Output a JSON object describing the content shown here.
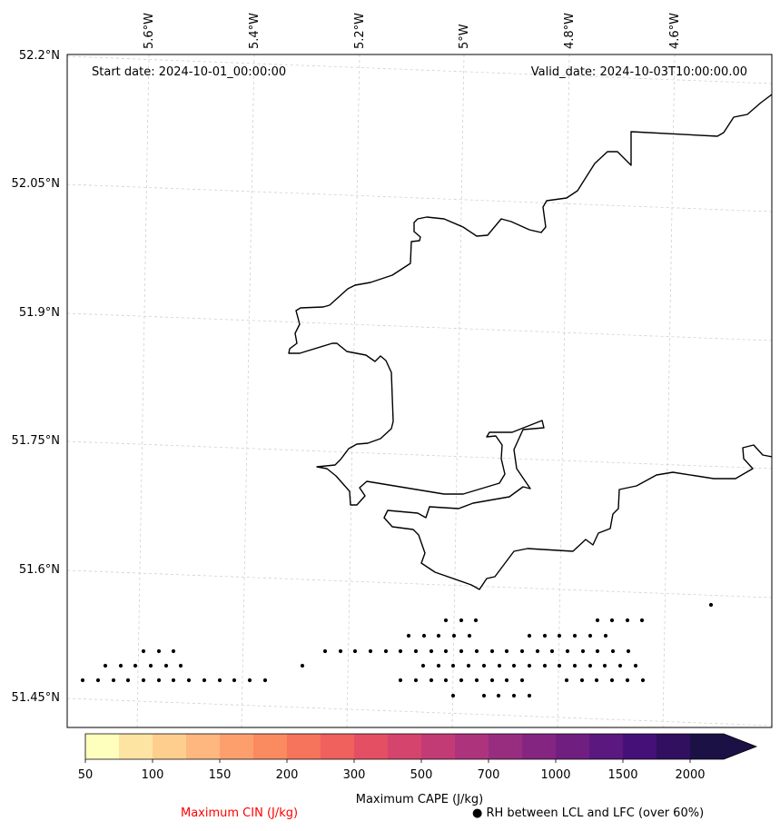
{
  "map": {
    "start_date_label": "Start date: 2024-10-01_00:00:00",
    "valid_date_label": "Valid_date: 2024-10-03T10:00:00.00",
    "lon_labels": [
      "5.6°W",
      "5.4°W",
      "5.2°W",
      "5°W",
      "4.8°W",
      "4.6°W"
    ],
    "lat_labels": [
      "52.2°N",
      "52.05°N",
      "51.9°N",
      "51.75°N",
      "51.6°N",
      "51.45°N"
    ]
  },
  "colorbar": {
    "label": "Maximum CAPE (J/kg)",
    "tick_labels": [
      "50",
      "100",
      "150",
      "200",
      "300",
      "500",
      "700",
      "1000",
      "1500",
      "2000"
    ],
    "levels": [
      50,
      75,
      100,
      125,
      150,
      175,
      200,
      250,
      300,
      400,
      500,
      600,
      700,
      850,
      1000,
      1250,
      1500,
      1750,
      2000
    ],
    "colors": [
      "#fefebd",
      "#fde4a3",
      "#fece8f",
      "#feb77e",
      "#fd9f6d",
      "#fa8a5f",
      "#f6745c",
      "#f0605d",
      "#e44f64",
      "#d5446d",
      "#c23b75",
      "#ad347c",
      "#982d80",
      "#842681",
      "#701f81",
      "#5b187f",
      "#451077",
      "#30105f",
      "#1c1145"
    ]
  },
  "legend": {
    "cin_label": "Maximum CIN (J/kg)",
    "cin_color": "#ff0000",
    "rh_label": "● RH between LCL and LFC (over 60%)"
  }
}
